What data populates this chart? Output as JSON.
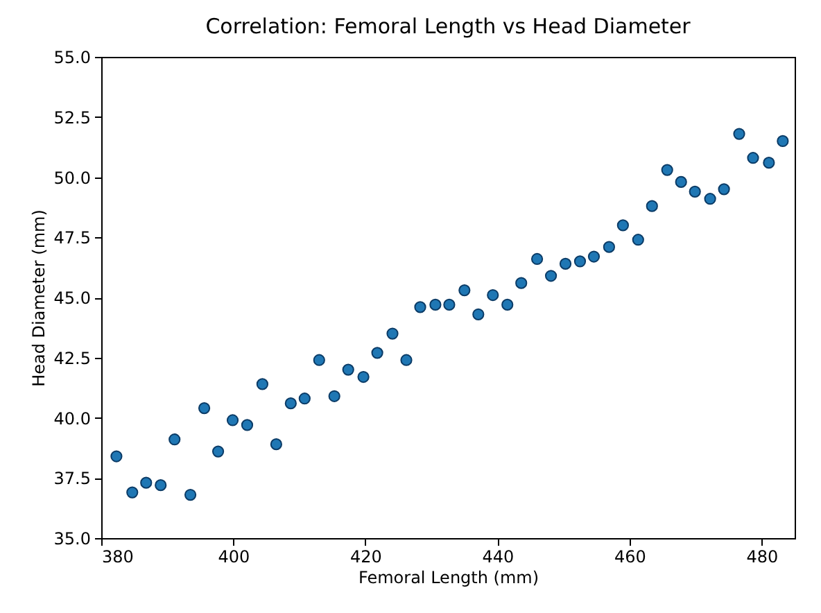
{
  "chart_data": {
    "type": "scatter",
    "title": "Correlation: Femoral Length vs Head Diameter",
    "xlabel": "Femoral Length (mm)",
    "ylabel": "Head Diameter (mm)",
    "x": [
      382.3,
      384.7,
      386.8,
      389.0,
      391.1,
      393.5,
      395.6,
      397.7,
      399.9,
      402.1,
      404.4,
      406.5,
      408.7,
      410.8,
      413.0,
      415.3,
      417.4,
      419.7,
      421.8,
      424.1,
      426.2,
      428.3,
      430.6,
      432.7,
      435.0,
      437.1,
      439.3,
      441.5,
      443.6,
      446.0,
      448.1,
      450.3,
      452.5,
      454.6,
      456.9,
      459.0,
      461.3,
      463.4,
      465.7,
      467.8,
      469.9,
      472.2,
      474.3,
      476.6,
      478.7,
      481.1,
      483.2
    ],
    "series": [
      {
        "color": "#1f77b4",
        "values": [
          38.4,
          36.9,
          37.3,
          37.2,
          39.1,
          36.8,
          40.4,
          38.6,
          39.9,
          39.7,
          41.4,
          38.9,
          40.6,
          40.8,
          42.4,
          40.9,
          42.0,
          41.7,
          42.7,
          43.5,
          42.4,
          44.6,
          44.7,
          44.7,
          45.3,
          44.3,
          45.1,
          44.7,
          45.6,
          46.6,
          45.9,
          46.4,
          46.5,
          46.7,
          47.1,
          48.0,
          47.4,
          48.8,
          50.3,
          49.8,
          49.4,
          49.1,
          49.5,
          51.8,
          50.8,
          50.6,
          51.5
        ]
      }
    ],
    "xlim": [
      380,
      485
    ],
    "ylim": [
      35,
      55
    ],
    "xticks": [
      380,
      400,
      420,
      440,
      460,
      480
    ],
    "yticks": [
      {
        "value": 35,
        "label": "35.0"
      },
      {
        "value": 37.5,
        "label": "37.5"
      },
      {
        "value": 40,
        "label": "40.0"
      },
      {
        "value": 42.5,
        "label": "42.5"
      },
      {
        "value": 45,
        "label": "45.0"
      },
      {
        "value": 47.5,
        "label": "47.5"
      },
      {
        "value": 50,
        "label": "50.0"
      },
      {
        "value": 52.5,
        "label": "52.5"
      },
      {
        "value": 55,
        "label": "55.0"
      }
    ],
    "marker": "circle",
    "grid": false,
    "legend": false
  }
}
